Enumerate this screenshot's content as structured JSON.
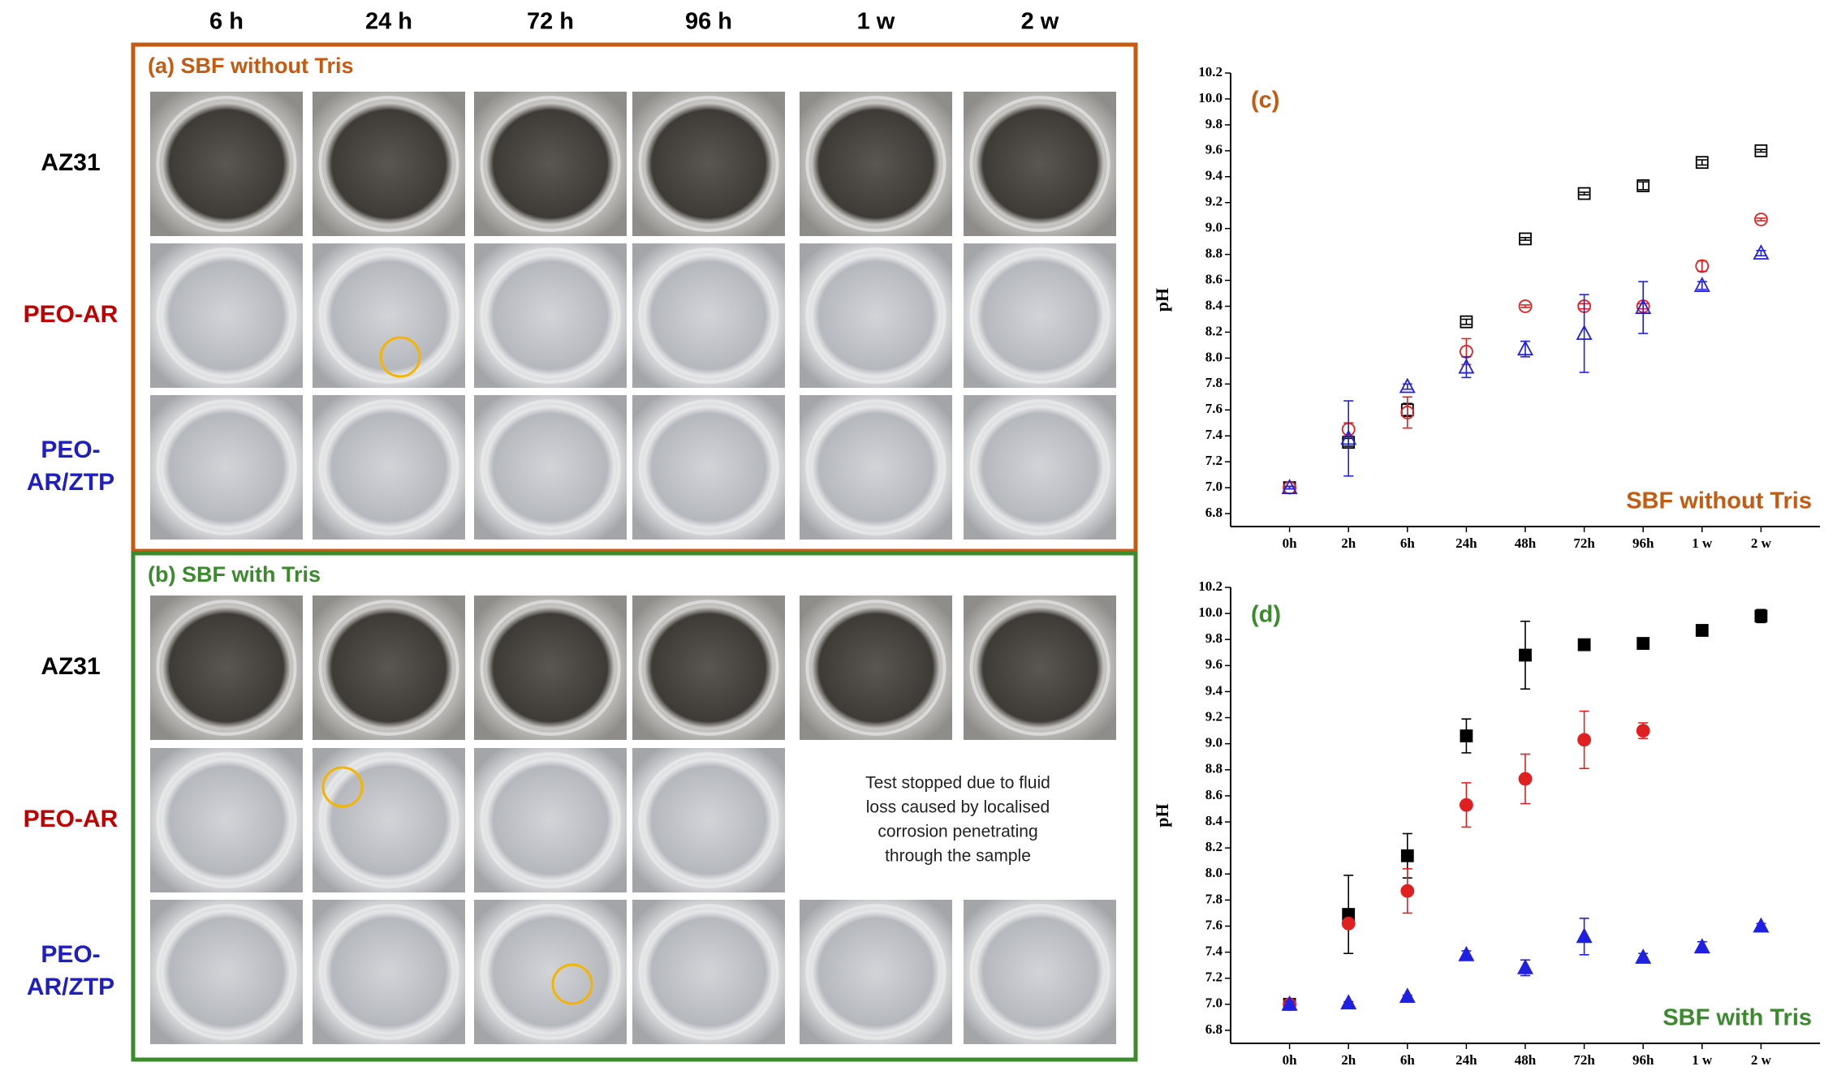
{
  "column_headers": [
    "6 h",
    "24 h",
    "72 h",
    "96 h",
    "1 w",
    "2 w"
  ],
  "panels": [
    {
      "title": "(a) SBF without Tris",
      "color": "#c55a11",
      "rows": [
        {
          "lines": [
            "AZ31"
          ],
          "color": "#000000"
        },
        {
          "lines": [
            "PEO-AR"
          ],
          "color": "#c00000"
        },
        {
          "lines": [
            "PEO-",
            "AR/ZTP"
          ],
          "color": "#1f1fbf"
        }
      ]
    },
    {
      "title": "(b) SBF with Tris",
      "color": "#3c8a2e",
      "rows": [
        {
          "lines": [
            "AZ31"
          ],
          "color": "#000000"
        },
        {
          "lines": [
            "PEO-AR"
          ],
          "color": "#c00000"
        },
        {
          "lines": [
            "PEO-",
            "AR/ZTP"
          ],
          "color": "#1f1fbf"
        }
      ],
      "note": [
        "Test stopped due to fluid",
        "loss caused by localised",
        "corrosion penetrating",
        "through the sample"
      ]
    }
  ],
  "chart_data": [
    {
      "type": "scatter",
      "label": "(c)",
      "label_color": "#c55a11",
      "annotation": "SBF without Tris",
      "annotation_color": "#c55a11",
      "y_label": "pH",
      "categories": [
        "0h",
        "2h",
        "6h",
        "24h",
        "48h",
        "72h",
        "96h",
        "1 w",
        "2 w"
      ],
      "ylim": [
        6.7,
        10.2
      ],
      "yticks": [
        6.8,
        {
          "value": 7,
          "label": "7.0"
        },
        7.2,
        7.4,
        7.6,
        7.8,
        {
          "value": 8,
          "label": "8.0"
        },
        8.2,
        8.4,
        8.6,
        8.8,
        {
          "value": 9,
          "label": "9.0"
        },
        9.2,
        9.4,
        9.6,
        9.8,
        {
          "value": 10,
          "label": "10.0"
        },
        10.2
      ],
      "series": [
        {
          "color": "#000000",
          "marker": "square",
          "filled": false,
          "values": [
            7.0,
            7.35,
            7.6,
            8.28,
            8.92,
            9.27,
            9.33,
            9.51,
            9.6
          ],
          "errors": [
            0.01,
            0.03,
            0.05,
            0.02,
            0.01,
            0.01,
            0.03,
            0.02,
            0.01
          ]
        },
        {
          "color": "#e02020",
          "marker": "circle",
          "filled": false,
          "values": [
            7.0,
            7.45,
            7.58,
            8.05,
            8.4,
            8.4,
            8.4,
            8.71,
            9.07
          ],
          "errors": [
            0.01,
            0.05,
            0.12,
            0.1,
            0.01,
            0.02,
            0.02,
            0.04,
            0.01
          ]
        },
        {
          "color": "#2020e0",
          "marker": "triangle",
          "filled": false,
          "values": [
            7.0,
            7.38,
            7.78,
            7.93,
            8.07,
            8.19,
            8.39,
            8.56,
            8.81
          ],
          "errors": [
            0.01,
            0.29,
            0.02,
            0.08,
            0.06,
            0.3,
            0.2,
            0.03,
            0.02
          ]
        }
      ]
    },
    {
      "type": "scatter",
      "label": "(d)",
      "label_color": "#3c8a2e",
      "annotation": "SBF with Tris",
      "annotation_color": "#3c8a2e",
      "y_label": "pH",
      "categories": [
        "0h",
        "2h",
        "6h",
        "24h",
        "48h",
        "72h",
        "96h",
        "1 w",
        "2 w"
      ],
      "ylim": [
        6.7,
        10.2
      ],
      "yticks": [
        6.8,
        {
          "value": 7,
          "label": "7.0"
        },
        7.2,
        7.4,
        7.6,
        7.8,
        {
          "value": 8,
          "label": "8.0"
        },
        8.2,
        8.4,
        8.6,
        8.8,
        {
          "value": 9,
          "label": "9.0"
        },
        9.2,
        9.4,
        9.6,
        9.8,
        {
          "value": 10,
          "label": "10.0"
        },
        10.2
      ],
      "series": [
        {
          "color": "#000000",
          "marker": "square",
          "filled": true,
          "values": [
            7.0,
            7.69,
            8.14,
            9.06,
            9.68,
            9.76,
            9.77,
            9.87,
            9.98
          ],
          "errors": [
            0.01,
            0.3,
            0.17,
            0.13,
            0.26,
            0.02,
            0.02,
            0.04,
            0.05
          ]
        },
        {
          "color": "#e02020",
          "marker": "circle",
          "filled": true,
          "values": [
            7.0,
            7.62,
            7.87,
            8.53,
            8.73,
            9.03,
            9.1,
            null,
            null
          ],
          "errors": [
            0.01,
            0.03,
            0.17,
            0.17,
            0.19,
            0.22,
            0.06,
            null,
            null
          ]
        },
        {
          "color": "#2020e0",
          "marker": "triangle",
          "filled": true,
          "values": [
            7.0,
            7.01,
            7.06,
            7.38,
            7.28,
            7.52,
            7.36,
            7.44,
            7.6
          ],
          "errors": [
            0.02,
            0.01,
            0.01,
            0.03,
            0.06,
            0.14,
            0.03,
            0.04,
            0.02
          ]
        }
      ]
    }
  ]
}
